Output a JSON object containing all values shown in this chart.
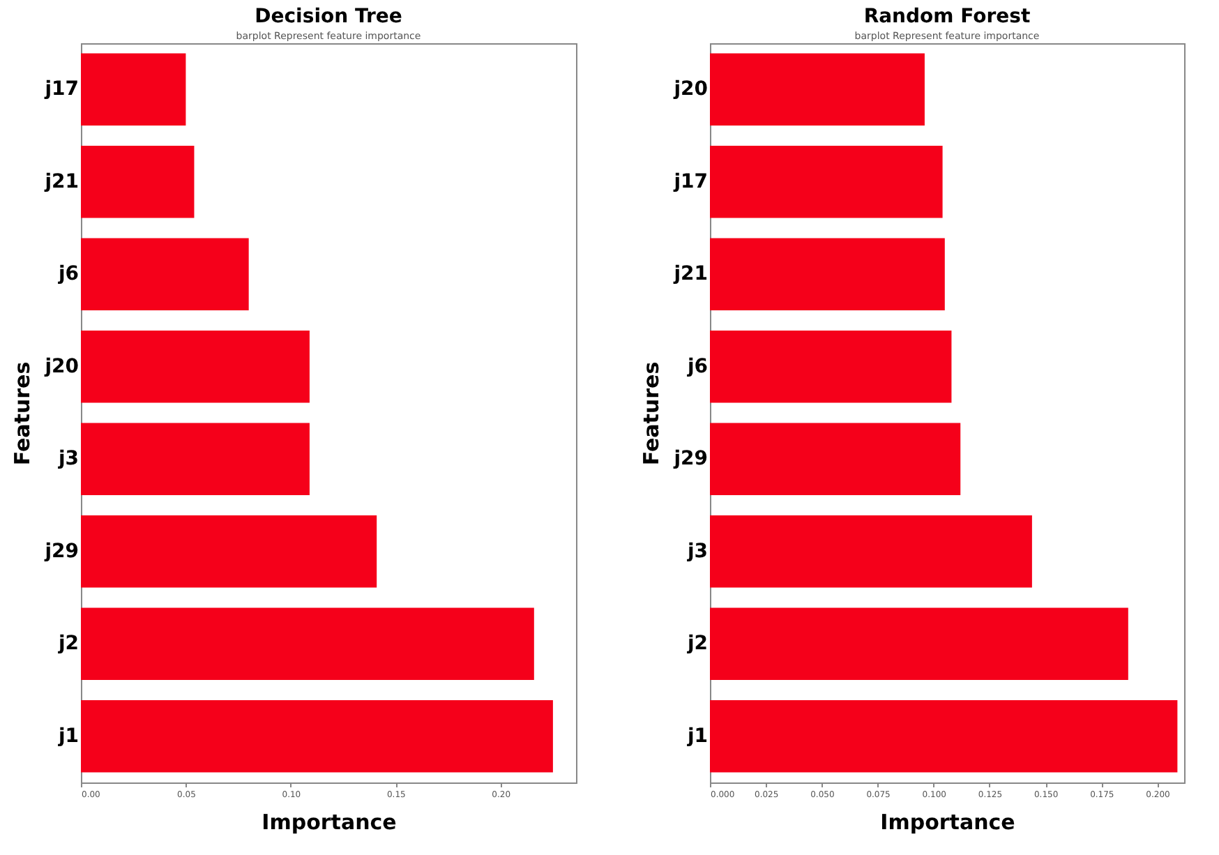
{
  "chart_data": [
    {
      "type": "bar",
      "orientation": "horizontal",
      "title": "Decision Tree",
      "subtitle": "barplot Represent feature importance",
      "xlabel": "Importance",
      "ylabel": "Features",
      "categories": [
        "j17",
        "j21",
        "j6",
        "j20",
        "j3",
        "j29",
        "j2",
        "j1"
      ],
      "values": [
        0.05,
        0.054,
        0.08,
        0.109,
        0.109,
        0.141,
        0.216,
        0.225
      ],
      "color": "#f5001a",
      "xlim": [
        0,
        0.236
      ],
      "xticks": [
        {
          "value": 0,
          "label": "0.00"
        },
        {
          "value": 0.05,
          "label": "0.05"
        },
        {
          "value": 0.1,
          "label": "0.10"
        },
        {
          "value": 0.15,
          "label": "0.15"
        },
        {
          "value": 0.2,
          "label": "0.20"
        }
      ],
      "grid": false
    },
    {
      "type": "bar",
      "orientation": "horizontal",
      "title": "Random Forest",
      "subtitle": "barplot Represent feature importance",
      "xlabel": "Importance",
      "ylabel": "Features",
      "categories": [
        "j20",
        "j17",
        "j21",
        "j6",
        "j29",
        "j3",
        "j2",
        "j1"
      ],
      "values": [
        0.096,
        0.104,
        0.105,
        0.108,
        0.112,
        0.144,
        0.187,
        0.209
      ],
      "color": "#f5001a",
      "xlim": [
        0,
        0.212
      ],
      "xticks": [
        {
          "value": 0,
          "label": "0.000"
        },
        {
          "value": 0.025,
          "label": "0.025"
        },
        {
          "value": 0.05,
          "label": "0.050"
        },
        {
          "value": 0.075,
          "label": "0.075"
        },
        {
          "value": 0.1,
          "label": "0.100"
        },
        {
          "value": 0.125,
          "label": "0.125"
        },
        {
          "value": 0.15,
          "label": "0.150"
        },
        {
          "value": 0.175,
          "label": "0.175"
        },
        {
          "value": 0.2,
          "label": "0.200"
        }
      ],
      "grid": false
    }
  ]
}
